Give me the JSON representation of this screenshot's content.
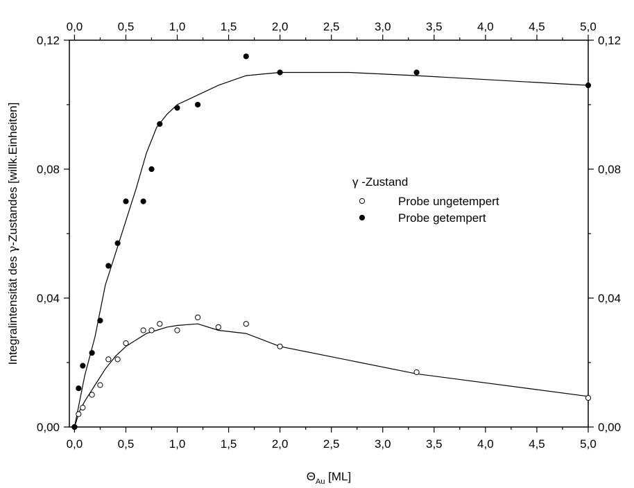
{
  "chart_data": {
    "type": "scatter",
    "title": "",
    "xlabel": {
      "main": "Θ",
      "sub": "Au",
      "unit": " [ML]"
    },
    "ylabel": {
      "pre": "Integralintensität des ",
      "greek": "γ",
      "post": "-Zustandes [willk.Einheiten]"
    },
    "xlim": [
      -0.05,
      5.0
    ],
    "ylim": [
      0.0,
      0.12
    ],
    "x_ticks": [
      0.0,
      0.5,
      1.0,
      1.5,
      2.0,
      2.5,
      3.0,
      3.5,
      4.0,
      4.5,
      5.0
    ],
    "x_tick_labels": [
      "0,0",
      "0,5",
      "1,0",
      "1,5",
      "2,0",
      "2,5",
      "3,0",
      "3,5",
      "4,0",
      "4,5",
      "5,0"
    ],
    "y_ticks": [
      0.0,
      0.04,
      0.08,
      0.12
    ],
    "y_tick_labels": [
      "0,00",
      "0,04",
      "0,08",
      "0,12"
    ],
    "grid": false,
    "legend": {
      "title": "γ -Zustand",
      "placement": "center-right",
      "entries": [
        {
          "label": "Probe ungetempert",
          "marker": "open-circle"
        },
        {
          "label": "Probe getempert",
          "marker": "filled-circle"
        }
      ]
    },
    "series": [
      {
        "name": "Probe ungetempert",
        "marker": "open-circle",
        "points": [
          [
            0.0,
            0.0
          ],
          [
            0.04,
            0.004
          ],
          [
            0.08,
            0.006
          ],
          [
            0.17,
            0.01
          ],
          [
            0.25,
            0.013
          ],
          [
            0.33,
            0.021
          ],
          [
            0.42,
            0.021
          ],
          [
            0.5,
            0.026
          ],
          [
            0.67,
            0.03
          ],
          [
            0.75,
            0.03
          ],
          [
            0.83,
            0.032
          ],
          [
            1.0,
            0.03
          ],
          [
            1.2,
            0.034
          ],
          [
            1.4,
            0.031
          ],
          [
            1.67,
            0.032
          ],
          [
            2.0,
            0.025
          ],
          [
            3.33,
            0.017
          ],
          [
            5.0,
            0.009
          ]
        ],
        "fit": [
          [
            0.0,
            0.0
          ],
          [
            0.05,
            0.005
          ],
          [
            0.1,
            0.008
          ],
          [
            0.2,
            0.013
          ],
          [
            0.3,
            0.018
          ],
          [
            0.4,
            0.022
          ],
          [
            0.5,
            0.025
          ],
          [
            0.6,
            0.027
          ],
          [
            0.7,
            0.029
          ],
          [
            0.8,
            0.03
          ],
          [
            0.9,
            0.031
          ],
          [
            1.0,
            0.0315
          ],
          [
            1.2,
            0.032
          ],
          [
            1.4,
            0.03
          ],
          [
            1.67,
            0.029
          ],
          [
            2.0,
            0.025
          ],
          [
            3.33,
            0.0165
          ],
          [
            5.0,
            0.0095
          ]
        ]
      },
      {
        "name": "Probe getempert",
        "marker": "filled-circle",
        "points": [
          [
            0.0,
            0.0
          ],
          [
            0.04,
            0.012
          ],
          [
            0.08,
            0.019
          ],
          [
            0.17,
            0.023
          ],
          [
            0.25,
            0.033
          ],
          [
            0.33,
            0.05
          ],
          [
            0.42,
            0.057
          ],
          [
            0.5,
            0.07
          ],
          [
            0.67,
            0.07
          ],
          [
            0.75,
            0.08
          ],
          [
            0.83,
            0.094
          ],
          [
            1.0,
            0.099
          ],
          [
            1.2,
            0.1
          ],
          [
            1.67,
            0.115
          ],
          [
            2.0,
            0.11
          ],
          [
            3.33,
            0.11
          ],
          [
            5.0,
            0.106
          ]
        ],
        "fit": [
          [
            0.0,
            0.0
          ],
          [
            0.05,
            0.008
          ],
          [
            0.1,
            0.016
          ],
          [
            0.2,
            0.028
          ],
          [
            0.3,
            0.044
          ],
          [
            0.4,
            0.054
          ],
          [
            0.5,
            0.064
          ],
          [
            0.6,
            0.074
          ],
          [
            0.7,
            0.085
          ],
          [
            0.8,
            0.093
          ],
          [
            0.9,
            0.097
          ],
          [
            1.0,
            0.1
          ],
          [
            1.2,
            0.103
          ],
          [
            1.4,
            0.106
          ],
          [
            1.67,
            0.109
          ],
          [
            2.0,
            0.11
          ],
          [
            2.67,
            0.11
          ],
          [
            3.33,
            0.109
          ],
          [
            5.0,
            0.106
          ]
        ]
      }
    ]
  }
}
